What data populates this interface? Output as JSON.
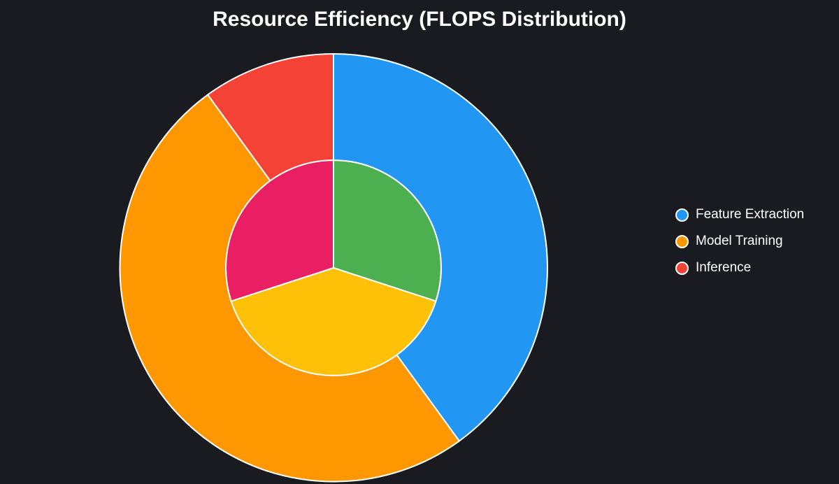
{
  "title": "Resource Efficiency (FLOPS Distribution)",
  "colors": {
    "background": "#1a1b20",
    "text": "#ffffff",
    "segment_stroke": "#ffffff"
  },
  "legend": {
    "items": [
      {
        "label": "Feature Extraction",
        "color": "#2196F3"
      },
      {
        "label": "Model Training",
        "color": "#FF9800"
      },
      {
        "label": "Inference",
        "color": "#F44336"
      }
    ]
  },
  "chart_data": {
    "type": "pie",
    "subtype": "nested-donut",
    "title": "Resource Efficiency (FLOPS Distribution)",
    "units": "percent",
    "start_angle_deg": 0,
    "direction": "clockwise",
    "legend_position": "right",
    "rings": [
      {
        "name": "outer-ring",
        "inner_radius_ratio": 0.503,
        "outer_radius_ratio": 1.0,
        "segments": [
          {
            "label": "Feature Extraction",
            "value": 40,
            "color": "#2196F3"
          },
          {
            "label": "Model Training",
            "value": 50,
            "color": "#FF9800"
          },
          {
            "label": "Inference",
            "value": 10,
            "color": "#F44336"
          }
        ]
      },
      {
        "name": "inner-pie",
        "inner_radius_ratio": 0,
        "outer_radius_ratio": 0.503,
        "segments": [
          {
            "value": 30,
            "color": "#4CAF50"
          },
          {
            "value": 40,
            "color": "#FFC107"
          },
          {
            "value": 30,
            "color": "#E91E63"
          }
        ]
      }
    ]
  }
}
